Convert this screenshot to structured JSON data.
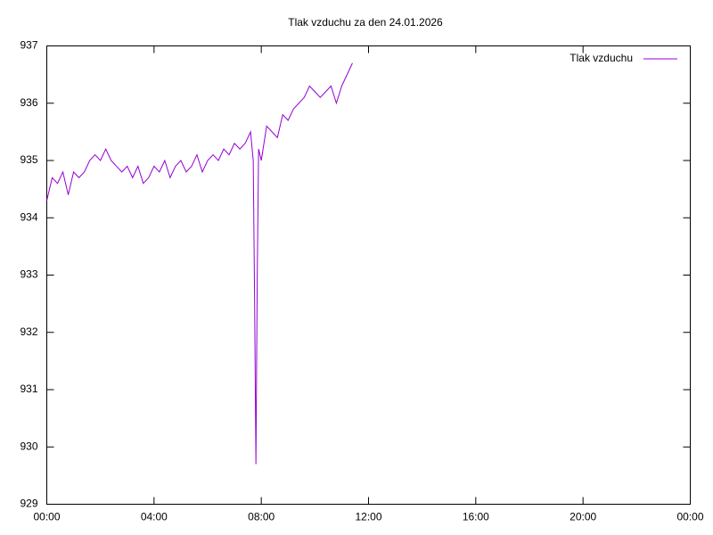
{
  "chart_data": {
    "type": "line",
    "title": "Tlak vzduchu za den 24.01.2026",
    "x": [
      0,
      0.2,
      0.4,
      0.6,
      0.8,
      1.0,
      1.2,
      1.4,
      1.6,
      1.8,
      2.0,
      2.2,
      2.4,
      2.6,
      2.8,
      3.0,
      3.2,
      3.4,
      3.6,
      3.8,
      4.0,
      4.2,
      4.4,
      4.6,
      4.8,
      5.0,
      5.2,
      5.4,
      5.6,
      5.8,
      6.0,
      6.2,
      6.4,
      6.6,
      6.8,
      7.0,
      7.2,
      7.4,
      7.6,
      7.7,
      7.75,
      7.8,
      7.85,
      7.9,
      8.0,
      8.2,
      8.4,
      8.6,
      8.8,
      9.0,
      9.2,
      9.4,
      9.6,
      9.8,
      10.0,
      10.2,
      10.4,
      10.6,
      10.8,
      11.0,
      11.2,
      11.4
    ],
    "series": [
      {
        "name": "Tlak vzduchu",
        "color": "#9400d3",
        "values": [
          934.3,
          934.7,
          934.6,
          934.8,
          934.4,
          934.8,
          934.7,
          934.8,
          935.0,
          935.1,
          935.0,
          935.2,
          935.0,
          934.9,
          934.8,
          934.9,
          934.7,
          934.9,
          934.6,
          934.7,
          934.9,
          934.8,
          935.0,
          934.7,
          934.9,
          935.0,
          934.8,
          934.9,
          935.1,
          934.8,
          935.0,
          935.1,
          935.0,
          935.2,
          935.1,
          935.3,
          935.2,
          935.3,
          935.5,
          935.0,
          932.6,
          929.7,
          933.0,
          935.2,
          935.0,
          935.6,
          935.5,
          935.4,
          935.8,
          935.7,
          935.9,
          936.0,
          936.1,
          936.3,
          936.2,
          936.1,
          936.2,
          936.3,
          936.0,
          936.3,
          936.5,
          936.7
        ]
      }
    ],
    "xlim": [
      0,
      24
    ],
    "xticks": [
      {
        "value": 0,
        "label": "00:00"
      },
      {
        "value": 4,
        "label": "04:00"
      },
      {
        "value": 8,
        "label": "08:00"
      },
      {
        "value": 12,
        "label": "12:00"
      },
      {
        "value": 16,
        "label": "16:00"
      },
      {
        "value": 20,
        "label": "20:00"
      },
      {
        "value": 24,
        "label": "00:00"
      }
    ],
    "ylim": [
      929,
      937
    ],
    "yticks": [
      929,
      930,
      931,
      932,
      933,
      934,
      935,
      936,
      937
    ],
    "legend": "top-right"
  }
}
